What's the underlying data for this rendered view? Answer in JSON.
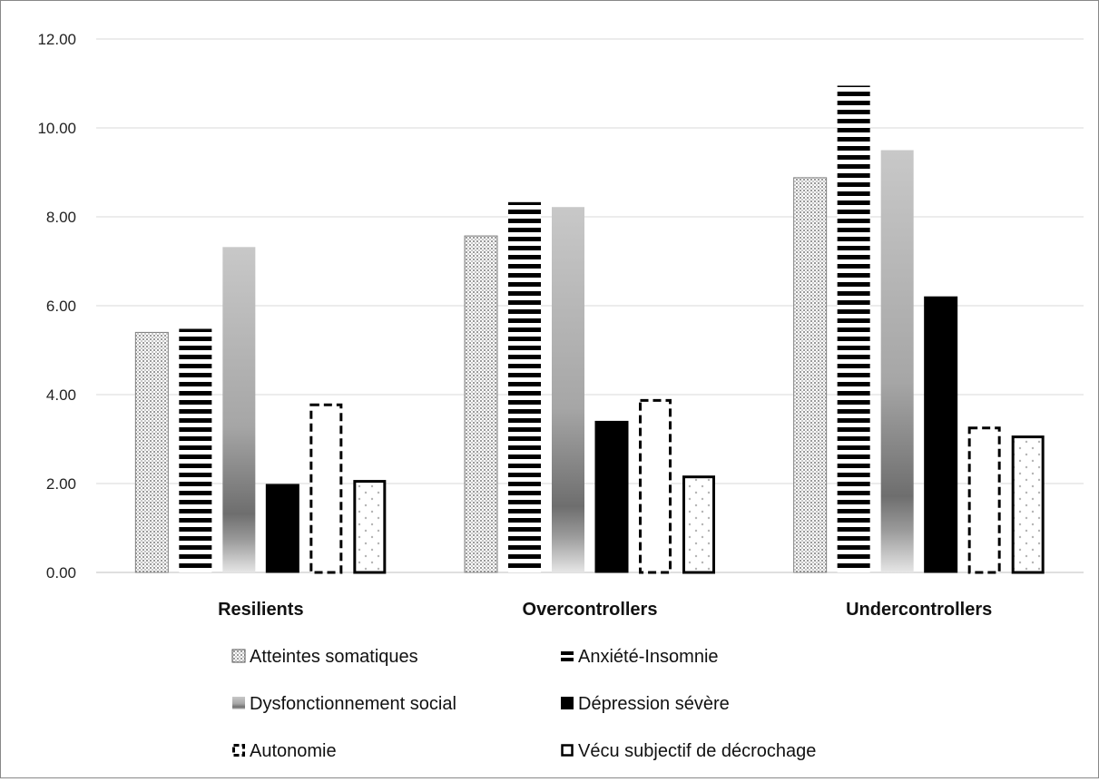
{
  "chart_data": {
    "type": "bar",
    "title": "",
    "xlabel": "",
    "ylabel": "",
    "ylim": [
      0,
      12
    ],
    "yticks": [
      "0.00",
      "2.00",
      "4.00",
      "6.00",
      "8.00",
      "10.00",
      "12.00"
    ],
    "grid": true,
    "legend_position": "bottom",
    "categories": [
      "Resilients",
      "Overcontrollers",
      "Undercontrollers"
    ],
    "series": [
      {
        "name": "Atteintes somatiques",
        "values": [
          5.4,
          7.57,
          8.88
        ],
        "pattern": "dotted"
      },
      {
        "name": "Anxiété-Insomnie",
        "values": [
          5.48,
          8.33,
          10.95
        ],
        "pattern": "horizontal-stripes"
      },
      {
        "name": "Dysfonctionnement social",
        "values": [
          7.32,
          8.22,
          9.5
        ],
        "pattern": "gray-gradient"
      },
      {
        "name": "Dépression sévère",
        "values": [
          1.98,
          3.4,
          6.2
        ],
        "pattern": "solid-black"
      },
      {
        "name": "Autonomie",
        "values": [
          3.8,
          3.9,
          3.28
        ],
        "pattern": "dashed-outline"
      },
      {
        "name": "Vécu subjectif de décrochage",
        "values": [
          2.08,
          2.18,
          3.08
        ],
        "pattern": "dotted-outline"
      }
    ],
    "colors": {
      "grid": "#d9d9d9",
      "axis": "#bfbfbf",
      "black": "#000000",
      "dots": "#b5b5b5"
    }
  }
}
